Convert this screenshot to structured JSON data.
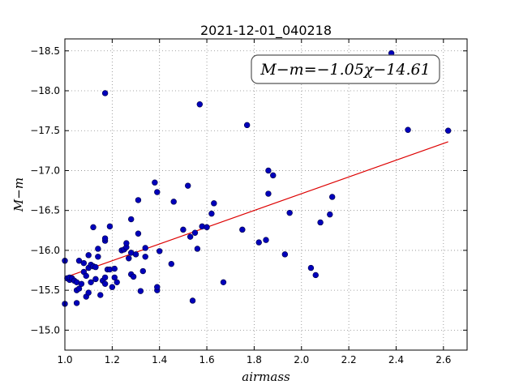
{
  "chart_data": {
    "type": "scatter",
    "title": "2021-12-01_040218",
    "xlabel": "airmass",
    "ylabel": "M−m",
    "xlim": [
      1.0,
      2.7
    ],
    "ylim": [
      -18.65,
      -14.75
    ],
    "y_inverted": true,
    "grid": true,
    "x_ticks": [
      "1.0",
      "1.2",
      "1.4",
      "1.6",
      "1.8",
      "2.0",
      "2.2",
      "2.4",
      "2.6"
    ],
    "y_ticks": [
      "−15.0",
      "−15.5",
      "−16.0",
      "−16.5",
      "−17.0",
      "−17.5",
      "−18.0",
      "−18.5"
    ],
    "annotation": "M−m=−1.05χ−14.61",
    "fit": {
      "slope": -1.05,
      "intercept": -14.61,
      "x_range": [
        1.0,
        2.62
      ]
    },
    "colors": {
      "points": "#0000bb",
      "fit_line": "#dd0000",
      "grid": "#888888"
    },
    "points": [
      [
        1.0,
        -15.33
      ],
      [
        1.0,
        -15.87
      ],
      [
        1.01,
        -15.65
      ],
      [
        1.02,
        -15.63
      ],
      [
        1.02,
        -15.66
      ],
      [
        1.03,
        -15.65
      ],
      [
        1.04,
        -15.62
      ],
      [
        1.05,
        -15.34
      ],
      [
        1.05,
        -15.5
      ],
      [
        1.05,
        -15.6
      ],
      [
        1.06,
        -15.52
      ],
      [
        1.06,
        -15.87
      ],
      [
        1.07,
        -15.58
      ],
      [
        1.08,
        -15.73
      ],
      [
        1.08,
        -15.84
      ],
      [
        1.09,
        -15.68
      ],
      [
        1.09,
        -15.42
      ],
      [
        1.1,
        -15.47
      ],
      [
        1.1,
        -15.78
      ],
      [
        1.1,
        -15.94
      ],
      [
        1.11,
        -15.6
      ],
      [
        1.11,
        -15.82
      ],
      [
        1.12,
        -15.8
      ],
      [
        1.12,
        -16.29
      ],
      [
        1.13,
        -15.79
      ],
      [
        1.13,
        -15.64
      ],
      [
        1.14,
        -15.92
      ],
      [
        1.14,
        -16.02
      ],
      [
        1.15,
        -15.44
      ],
      [
        1.16,
        -15.62
      ],
      [
        1.17,
        -15.58
      ],
      [
        1.17,
        -15.66
      ],
      [
        1.17,
        -16.12
      ],
      [
        1.17,
        -16.15
      ],
      [
        1.18,
        -15.76
      ],
      [
        1.19,
        -15.76
      ],
      [
        1.19,
        -16.3
      ],
      [
        1.2,
        -15.54
      ],
      [
        1.21,
        -15.66
      ],
      [
        1.21,
        -15.77
      ],
      [
        1.22,
        -15.6
      ],
      [
        1.24,
        -16.0
      ],
      [
        1.25,
        -16.01
      ],
      [
        1.26,
        -16.04
      ],
      [
        1.26,
        -16.09
      ],
      [
        1.27,
        -15.9
      ],
      [
        1.28,
        -15.97
      ],
      [
        1.28,
        -15.7
      ],
      [
        1.28,
        -16.39
      ],
      [
        1.29,
        -15.67
      ],
      [
        1.3,
        -15.95
      ],
      [
        1.31,
        -16.21
      ],
      [
        1.31,
        -16.63
      ],
      [
        1.32,
        -15.49
      ],
      [
        1.33,
        -15.74
      ],
      [
        1.34,
        -16.03
      ],
      [
        1.34,
        -15.92
      ],
      [
        1.39,
        -15.5
      ],
      [
        1.39,
        -15.54
      ],
      [
        1.38,
        -16.85
      ],
      [
        1.39,
        -16.73
      ],
      [
        1.4,
        -15.99
      ],
      [
        1.45,
        -15.83
      ],
      [
        1.46,
        -16.61
      ],
      [
        1.5,
        -16.26
      ],
      [
        1.52,
        -16.81
      ],
      [
        1.53,
        -16.17
      ],
      [
        1.54,
        -15.37
      ],
      [
        1.55,
        -16.22
      ],
      [
        1.56,
        -16.02
      ],
      [
        1.58,
        -16.3
      ],
      [
        1.6,
        -16.29
      ],
      [
        1.62,
        -16.46
      ],
      [
        1.63,
        -16.59
      ],
      [
        1.57,
        -17.83
      ],
      [
        1.67,
        -15.6
      ],
      [
        1.75,
        -16.26
      ],
      [
        1.77,
        -17.57
      ],
      [
        1.82,
        -16.1
      ],
      [
        1.85,
        -16.13
      ],
      [
        1.86,
        -16.71
      ],
      [
        1.86,
        -17.0
      ],
      [
        1.88,
        -16.94
      ],
      [
        1.93,
        -15.95
      ],
      [
        1.95,
        -16.47
      ],
      [
        2.04,
        -15.78
      ],
      [
        2.06,
        -15.69
      ],
      [
        2.08,
        -16.35
      ],
      [
        2.12,
        -16.45
      ],
      [
        2.13,
        -16.67
      ],
      [
        1.17,
        -17.97
      ],
      [
        2.38,
        -18.47
      ],
      [
        2.45,
        -17.51
      ],
      [
        2.62,
        -17.5
      ]
    ]
  }
}
